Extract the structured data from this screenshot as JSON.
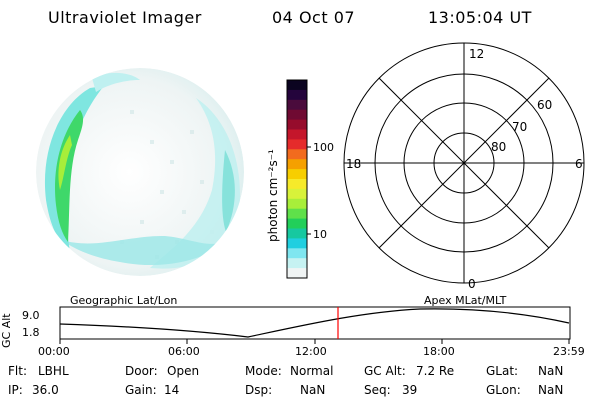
{
  "header": {
    "instrument": "Ultraviolet Imager",
    "date": "04 Oct 07",
    "time": "13:05:04 UT"
  },
  "colorbar": {
    "label": "photon cm⁻²s⁻¹",
    "tick_labels": [
      "100",
      "10"
    ],
    "colors": [
      "#0b0420",
      "#24043c",
      "#4a0b3c",
      "#6f0a32",
      "#960c2c",
      "#c4162b",
      "#e52b2b",
      "#f26b1e",
      "#f5a000",
      "#f7ce00",
      "#f6ea2a",
      "#d8f23a",
      "#a8ee3a",
      "#5fe04a",
      "#22cf5a",
      "#17c8a0",
      "#20cfe0",
      "#7fe6f0",
      "#c6f2f2",
      "#f0f4f4"
    ]
  },
  "polar_plot": {
    "mlt_labels": [
      "12",
      "18",
      "6",
      "0"
    ],
    "lat_labels": [
      "60",
      "70",
      "80"
    ]
  },
  "altitude_plot": {
    "ylabel": "GC Alt",
    "y_tick_labels": [
      "9.0",
      "1.8"
    ],
    "left_label": "Geographic Lat/Lon",
    "right_label": "Apex  MLat/MLT",
    "x_tick_labels": [
      "00:00",
      "06:00",
      "12:00",
      "18:00",
      "23:59"
    ],
    "marker_color": "#ff0000",
    "curve_color": "#000000"
  },
  "status": {
    "rows": [
      [
        {
          "key": "filter",
          "label": "Flt:",
          "value": "LBHL"
        },
        {
          "key": "door",
          "label": "Door:",
          "value": "Open"
        },
        {
          "key": "mode",
          "label": "Mode:",
          "value": "Normal"
        },
        {
          "key": "gc_alt",
          "label": "GC Alt:",
          "value": "7.2 Re"
        },
        {
          "key": "glat",
          "label": "GLat:",
          "value": "NaN"
        }
      ],
      [
        {
          "key": "ip",
          "label": "IP:",
          "value": "36.0"
        },
        {
          "key": "gain",
          "label": "Gain:",
          "value": "14"
        },
        {
          "key": "dsp",
          "label": "Dsp:",
          "value": "NaN"
        },
        {
          "key": "seq",
          "label": "Seq:",
          "value": "39"
        },
        {
          "key": "glon",
          "label": "GLon:",
          "value": "NaN"
        }
      ]
    ]
  }
}
